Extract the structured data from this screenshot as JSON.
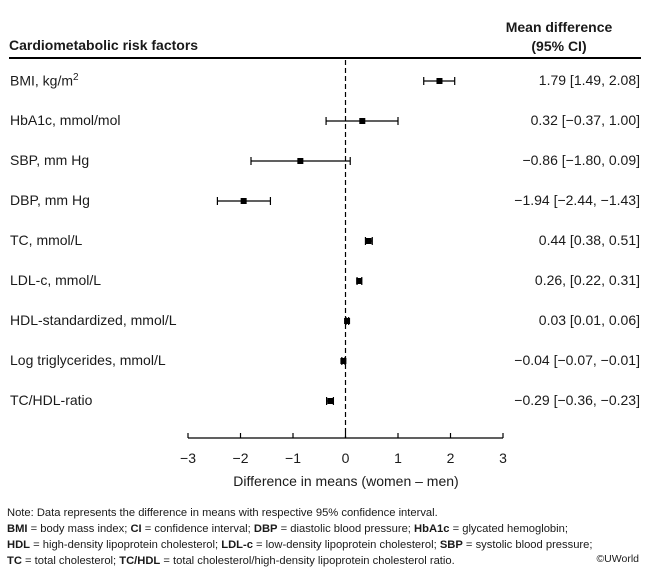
{
  "header": {
    "left": "Cardiometabolic risk factors",
    "right_line1": "Mean difference",
    "right_line2": "(95% CI)"
  },
  "chart_data": {
    "type": "forest",
    "xlabel": "Difference in means (women – men)",
    "xlim": [
      -3,
      3
    ],
    "xticks": [
      -3,
      -2,
      -1,
      0,
      1,
      2,
      3
    ],
    "xtick_labels": [
      "−3",
      "−2",
      "−1",
      "0",
      "1",
      "2",
      "3"
    ],
    "reference_line": 0,
    "rows": [
      {
        "label": "BMI, kg/m",
        "label_sup": "2",
        "estimate": 1.79,
        "lower": 1.49,
        "upper": 2.08,
        "text": "1.79 [1.49, 2.08]"
      },
      {
        "label": "HbA1c, mmol/mol",
        "label_sup": "",
        "estimate": 0.32,
        "lower": -0.37,
        "upper": 1.0,
        "text": "0.32 [−0.37, 1.00]"
      },
      {
        "label": "SBP, mm Hg",
        "label_sup": "",
        "estimate": -0.86,
        "lower": -1.8,
        "upper": 0.09,
        "text": "−0.86 [−1.80, 0.09]"
      },
      {
        "label": "DBP, mm Hg",
        "label_sup": "",
        "estimate": -1.94,
        "lower": -2.44,
        "upper": -1.43,
        "text": "−1.94 [−2.44, −1.43]"
      },
      {
        "label": "TC, mmol/L",
        "label_sup": "",
        "estimate": 0.44,
        "lower": 0.38,
        "upper": 0.51,
        "text": "0.44 [0.38, 0.51]"
      },
      {
        "label": "LDL-c, mmol/L",
        "label_sup": "",
        "estimate": 0.26,
        "lower": 0.22,
        "upper": 0.31,
        "text": "0.26, [0.22, 0.31]"
      },
      {
        "label": "HDL-standardized, mmol/L",
        "label_sup": "",
        "estimate": 0.03,
        "lower": 0.01,
        "upper": 0.06,
        "text": "0.03 [0.01, 0.06]"
      },
      {
        "label": "Log triglycerides, mmol/L",
        "label_sup": "",
        "estimate": -0.04,
        "lower": -0.07,
        "upper": -0.01,
        "text": "−0.04 [−0.07, −0.01]"
      },
      {
        "label": "TC/HDL-ratio",
        "label_sup": "",
        "estimate": -0.29,
        "lower": -0.36,
        "upper": -0.23,
        "text": "−0.29 [−0.36, −0.23]"
      }
    ]
  },
  "notes": {
    "line1": "Note: Data represents the difference in means with respective 95% confidence interval.",
    "abbreviations": [
      [
        {
          "b": "BMI",
          "t": " = body mass index; "
        },
        {
          "b": "CI",
          "t": " = confidence interval; "
        },
        {
          "b": "DBP",
          "t": " = diastolic blood pressure; "
        },
        {
          "b": "HbA1c",
          "t": " = glycated hemoglobin;"
        }
      ],
      [
        {
          "b": "HDL",
          "t": " = high-density lipoprotein cholesterol; "
        },
        {
          "b": "LDL-c",
          "t": " = low-density lipoprotein cholesterol; "
        },
        {
          "b": "SBP",
          "t": " = systolic blood pressure;"
        }
      ],
      [
        {
          "b": "TC",
          "t": " = total cholesterol; "
        },
        {
          "b": "TC/HDL",
          "t": " = total cholesterol/high-density lipoprotein cholesterol ratio."
        }
      ]
    ],
    "copyright": "©UWorld"
  }
}
